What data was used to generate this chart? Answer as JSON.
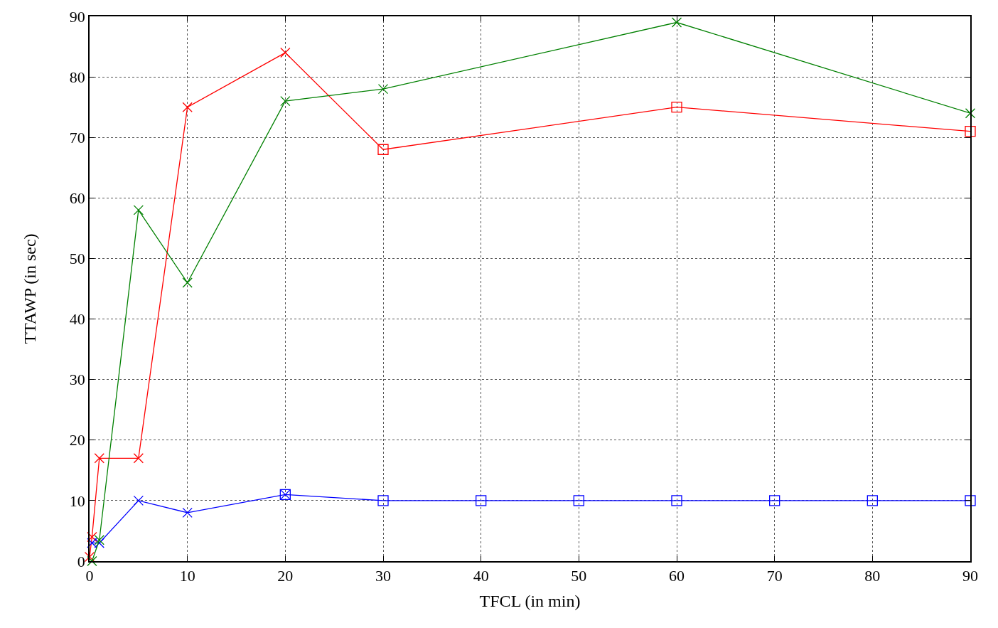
{
  "chart_data": {
    "type": "line",
    "xlabel": "TFCL (in min)",
    "ylabel": "TTAWP (in sec)",
    "xlim": [
      0,
      90
    ],
    "xticks": [
      0,
      10,
      20,
      30,
      40,
      50,
      60,
      70,
      80,
      90
    ],
    "ylim": [
      0,
      90
    ],
    "yticks": [
      0,
      10,
      20,
      30,
      40,
      50,
      60,
      70,
      80,
      90
    ],
    "grid": true,
    "line_style": "solid",
    "series": [
      {
        "marker": "none",
        "color": "#ff0000",
        "x": [
          0,
          0.25,
          1,
          5,
          10,
          20,
          30,
          60,
          90
        ],
        "values": [
          0.7,
          4,
          17,
          17,
          75,
          84,
          68,
          75,
          71
        ]
      },
      {
        "type": "scatter",
        "marker": "cross",
        "color": "#ff0000",
        "x": [
          0,
          0.25,
          1,
          5,
          10,
          20
        ],
        "values": [
          0.7,
          4,
          17,
          17,
          75,
          84
        ]
      },
      {
        "type": "scatter",
        "marker": "square",
        "color": "#ff0000",
        "x": [
          30,
          60,
          90
        ],
        "values": [
          68,
          75,
          71
        ]
      },
      {
        "marker": "none",
        "color": "#0000ff",
        "x": [
          0.25,
          1,
          5,
          10,
          20,
          30,
          40,
          50,
          60,
          70,
          80,
          90
        ],
        "values": [
          3,
          3,
          10,
          8,
          11,
          10,
          10,
          10,
          10,
          10,
          10,
          10
        ]
      },
      {
        "type": "scatter",
        "marker": "cross",
        "color": "#0000ff",
        "x": [
          0.25,
          1,
          5,
          10,
          20
        ],
        "values": [
          3,
          3,
          10,
          8,
          11
        ]
      },
      {
        "type": "scatter",
        "marker": "square",
        "color": "#0000ff",
        "x": [
          20,
          30,
          40,
          50,
          60,
          70,
          80,
          90
        ],
        "values": [
          11,
          10,
          10,
          10,
          10,
          10,
          10,
          10
        ]
      },
      {
        "marker": "none",
        "color": "#008000",
        "x": [
          0.25,
          1,
          5,
          10,
          20,
          30,
          60,
          90
        ],
        "values": [
          0,
          3.5,
          58,
          46,
          76,
          78,
          89,
          74
        ]
      },
      {
        "type": "scatter",
        "marker": "cross",
        "color": "#008000",
        "x": [
          0.25,
          1,
          5,
          10,
          20,
          30,
          60,
          90
        ],
        "values": [
          0,
          3.5,
          58,
          46,
          76,
          78,
          89,
          74
        ]
      }
    ]
  }
}
